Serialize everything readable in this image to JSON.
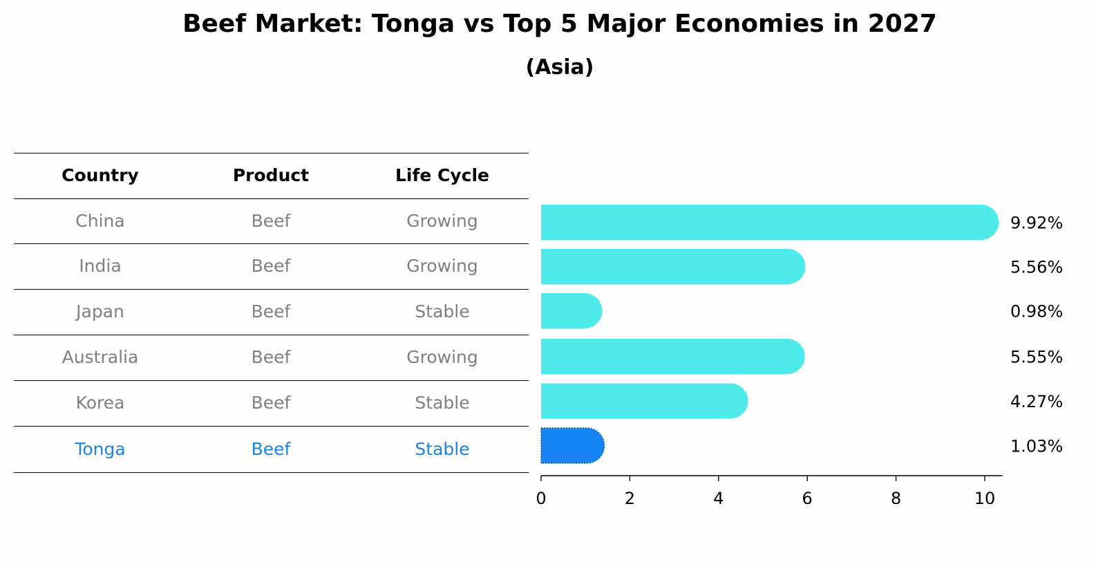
{
  "title": "Beef Market: Tonga vs Top 5 Major Economies in 2027",
  "subtitle": "(Asia)",
  "table": {
    "headers": [
      "Country",
      "Product",
      "Life Cycle"
    ],
    "rows": [
      {
        "country": "China",
        "product": "Beef",
        "life_cycle": "Growing",
        "highlight": false
      },
      {
        "country": "India",
        "product": "Beef",
        "life_cycle": "Growing",
        "highlight": false
      },
      {
        "country": "Japan",
        "product": "Beef",
        "life_cycle": "Stable",
        "highlight": false
      },
      {
        "country": "Australia",
        "product": "Beef",
        "life_cycle": "Growing",
        "highlight": false
      },
      {
        "country": "Korea",
        "product": "Beef",
        "life_cycle": "Stable",
        "highlight": false
      },
      {
        "country": "Tonga",
        "product": "Beef",
        "life_cycle": "Stable",
        "highlight": true
      }
    ]
  },
  "colors": {
    "bar": "#4eeaea",
    "highlight_bar": "#1883f3",
    "highlight_text": "#1b84e0",
    "muted_text": "#7f7f7f"
  },
  "chart_data": {
    "type": "bar",
    "orientation": "horizontal",
    "categories": [
      "China",
      "India",
      "Japan",
      "Australia",
      "Korea",
      "Tonga"
    ],
    "values": [
      9.92,
      5.56,
      0.98,
      5.55,
      4.27,
      1.03
    ],
    "value_labels": [
      "9.92%",
      "5.56%",
      "0.98%",
      "5.55%",
      "4.27%",
      "1.03%"
    ],
    "highlight": "Tonga",
    "xlim": [
      0,
      10.4
    ],
    "xticks": [
      0,
      2,
      4,
      6,
      8,
      10
    ],
    "xtick_labels": [
      "0",
      "2",
      "4",
      "6",
      "8",
      "10"
    ],
    "title": "Beef Market: Tonga vs Top 5 Major Economies in 2027",
    "subtitle": "(Asia)",
    "xlabel": "",
    "ylabel": "",
    "grid": false
  }
}
